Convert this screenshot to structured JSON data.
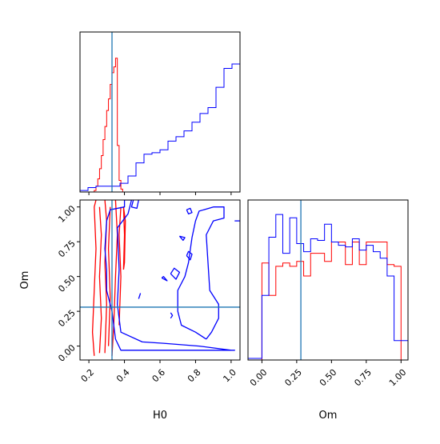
{
  "chart_data": {
    "type": "corner",
    "truth": {
      "H0": 0.33,
      "Om": 0.28
    },
    "colors": {
      "series_a": "#ff0000",
      "series_b": "#0000ff",
      "truth_line": "#1f77b4"
    },
    "panels": [
      {
        "id": "hist-H0",
        "type": "step-histogram",
        "xlim": [
          0.15,
          1.05
        ],
        "xticks": [
          0.2,
          0.4,
          0.6,
          0.8,
          1.0
        ],
        "show_tick_labels": false,
        "truth_x": 0.33,
        "series": [
          {
            "color_key": "series_a",
            "bin_width": 0.01,
            "start": 0.18,
            "values": [
              0,
              0,
              0,
              0,
              0,
              0.01,
              0.04,
              0.09,
              0.16,
              0.25,
              0.36,
              0.45,
              0.56,
              0.64,
              0.74,
              0.82,
              0.86,
              0.92,
              0.32,
              0.08,
              0.02,
              0
            ]
          },
          {
            "color_key": "series_b",
            "bin_width": 0.045,
            "start": 0.15,
            "values": [
              0.01,
              0.03,
              0.04,
              0.04,
              0.04,
              0.06,
              0.11,
              0.2,
              0.26,
              0.27,
              0.29,
              0.35,
              0.38,
              0.42,
              0.48,
              0.54,
              0.58,
              0.72,
              0.85,
              0.88,
              0.97,
              1.0,
              0.82,
              0.32,
              0.03
            ]
          }
        ]
      },
      {
        "id": "contour-H0-Om",
        "type": "contour",
        "xlabel": "H0",
        "ylabel": "Om",
        "xlim": [
          0.15,
          1.05
        ],
        "ylim": [
          -0.1,
          1.05
        ],
        "xticks": [
          0.2,
          0.4,
          0.6,
          0.8,
          1.0
        ],
        "xticklabels": [
          "0.2",
          "0.4",
          "0.6",
          "0.8",
          "1.0"
        ],
        "yticks": [
          0.0,
          0.25,
          0.5,
          0.75,
          1.0
        ],
        "yticklabels": [
          "0.00",
          "0.25",
          "0.50",
          "0.75",
          "1.00"
        ],
        "truth": {
          "x": 0.33,
          "y": 0.28
        },
        "contours": [
          {
            "color_key": "series_a",
            "points": [
              [
                0.23,
                -0.07
              ],
              [
                0.22,
                0.1
              ],
              [
                0.23,
                0.4
              ],
              [
                0.24,
                0.7
              ],
              [
                0.23,
                1.0
              ],
              [
                0.24,
                1.05
              ]
            ]
          },
          {
            "color_key": "series_a",
            "points": [
              [
                0.33,
                -0.07
              ],
              [
                0.34,
                0.15
              ],
              [
                0.35,
                0.5
              ],
              [
                0.36,
                0.8
              ],
              [
                0.35,
                1.05
              ]
            ]
          },
          {
            "color_key": "series_a",
            "points": [
              [
                0.26,
                -0.05
              ],
              [
                0.27,
                0.2
              ],
              [
                0.26,
                0.5
              ],
              [
                0.27,
                0.8
              ],
              [
                0.26,
                1.0
              ]
            ]
          },
          {
            "color_key": "series_a",
            "points": [
              [
                0.29,
                -0.05
              ],
              [
                0.3,
                0.3
              ],
              [
                0.29,
                0.6
              ],
              [
                0.3,
                0.9
              ],
              [
                0.29,
                1.05
              ]
            ]
          },
          {
            "color_key": "series_a",
            "points": [
              [
                0.31,
                0.0
              ],
              [
                0.32,
                0.35
              ],
              [
                0.31,
                0.7
              ],
              [
                0.32,
                1.0
              ]
            ]
          },
          {
            "color_key": "series_a",
            "points": [
              [
                0.37,
                0.15
              ],
              [
                0.38,
                0.5
              ],
              [
                0.37,
                0.8
              ],
              [
                0.38,
                1.0
              ]
            ]
          },
          {
            "color_key": "series_a",
            "points": [
              [
                0.395,
                0.55
              ],
              [
                0.4,
                0.8
              ],
              [
                0.395,
                1.0
              ],
              [
                0.405,
                0.9
              ],
              [
                0.4,
                0.6
              ],
              [
                0.395,
                0.55
              ]
            ]
          },
          {
            "color_key": "series_b",
            "points": [
              [
                0.35,
                0.05
              ],
              [
                0.33,
                0.25
              ],
              [
                0.3,
                0.4
              ],
              [
                0.3,
                0.55
              ],
              [
                0.29,
                0.7
              ],
              [
                0.3,
                0.9
              ],
              [
                0.32,
                0.98
              ],
              [
                0.4,
                1.0
              ],
              [
                0.4,
                1.05
              ],
              [
                0.44,
                1.05
              ],
              [
                0.42,
                0.95
              ],
              [
                0.36,
                0.85
              ],
              [
                0.37,
                0.55
              ],
              [
                0.36,
                0.3
              ],
              [
                0.38,
                0.1
              ],
              [
                0.5,
                0.03
              ],
              [
                0.62,
                0.02
              ],
              [
                0.82,
                0.0
              ],
              [
                1.0,
                -0.03
              ],
              [
                1.02,
                -0.03
              ],
              [
                0.85,
                -0.03
              ],
              [
                0.6,
                -0.03
              ],
              [
                0.38,
                -0.03
              ],
              [
                0.35,
                0.05
              ]
            ]
          },
          {
            "color_key": "series_b",
            "points": [
              [
                0.45,
                1.05
              ],
              [
                0.44,
                1.0
              ],
              [
                0.47,
                0.99
              ],
              [
                0.48,
                1.05
              ]
            ]
          },
          {
            "color_key": "series_b",
            "points": [
              [
                0.86,
                0.05
              ],
              [
                0.8,
                0.1
              ],
              [
                0.72,
                0.15
              ],
              [
                0.7,
                0.25
              ],
              [
                0.7,
                0.4
              ],
              [
                0.74,
                0.5
              ],
              [
                0.76,
                0.6
              ],
              [
                0.78,
                0.78
              ],
              [
                0.8,
                0.9
              ],
              [
                0.82,
                0.97
              ],
              [
                0.9,
                1.0
              ],
              [
                0.96,
                1.0
              ],
              [
                0.96,
                0.92
              ],
              [
                0.9,
                0.9
              ],
              [
                0.86,
                0.8
              ],
              [
                0.87,
                0.6
              ],
              [
                0.88,
                0.4
              ],
              [
                0.93,
                0.3
              ],
              [
                0.93,
                0.2
              ],
              [
                0.89,
                0.1
              ],
              [
                0.86,
                0.05
              ]
            ]
          },
          {
            "color_key": "series_b",
            "points": [
              [
                0.75,
                0.98
              ],
              [
                0.76,
                0.95
              ],
              [
                0.78,
                0.96
              ],
              [
                0.77,
                0.99
              ],
              [
                0.75,
                0.98
              ]
            ]
          },
          {
            "color_key": "series_b",
            "points": [
              [
                0.71,
                0.79
              ],
              [
                0.74,
                0.78
              ],
              [
                0.73,
                0.76
              ],
              [
                0.71,
                0.79
              ]
            ]
          },
          {
            "color_key": "series_b",
            "points": [
              [
                0.75,
                0.65
              ],
              [
                0.77,
                0.62
              ],
              [
                0.78,
                0.66
              ],
              [
                0.76,
                0.68
              ],
              [
                0.75,
                0.65
              ]
            ]
          },
          {
            "color_key": "series_b",
            "points": [
              [
                0.61,
                0.49
              ],
              [
                0.64,
                0.47
              ],
              [
                0.62,
                0.5
              ],
              [
                0.61,
                0.49
              ]
            ]
          },
          {
            "color_key": "series_b",
            "points": [
              [
                0.66,
                0.52
              ],
              [
                0.69,
                0.48
              ],
              [
                0.71,
                0.53
              ],
              [
                0.68,
                0.56
              ],
              [
                0.66,
                0.52
              ]
            ]
          },
          {
            "color_key": "series_b",
            "points": [
              [
                0.48,
                0.34
              ],
              [
                0.49,
                0.38
              ]
            ]
          },
          {
            "color_key": "series_b",
            "points": [
              [
                0.66,
                0.2
              ],
              [
                0.67,
                0.22
              ],
              [
                0.66,
                0.24
              ]
            ]
          },
          {
            "color_key": "series_b",
            "points": [
              [
                1.02,
                0.9
              ],
              [
                1.05,
                0.9
              ]
            ]
          }
        ]
      },
      {
        "id": "hist-Om",
        "type": "step-histogram",
        "xlabel": "Om",
        "xlim": [
          -0.1,
          1.05
        ],
        "xticks": [
          0.0,
          0.25,
          0.5,
          0.75,
          1.0
        ],
        "xticklabels": [
          "0.00",
          "0.25",
          "0.50",
          "0.75",
          "1.00"
        ],
        "truth_x": 0.28,
        "series": [
          {
            "color_key": "series_a",
            "bin_width": 0.05,
            "start": -0.1,
            "values": [
              0,
              0,
              0.6,
              0.4,
              0.58,
              0.6,
              0.58,
              0.61,
              0.52,
              0.66,
              0.66,
              0.61,
              0.73,
              0.73,
              0.59,
              0.73,
              0.59,
              0.73,
              0.73,
              0.73,
              0.59,
              0.58,
              0
            ]
          },
          {
            "color_key": "series_b",
            "bin_width": 0.05,
            "start": -0.1,
            "values": [
              0.01,
              0.01,
              0.4,
              0.76,
              0.9,
              0.66,
              0.88,
              0.72,
              0.67,
              0.75,
              0.74,
              0.84,
              0.73,
              0.71,
              0.7,
              0.75,
              0.68,
              0.71,
              0.67,
              0.63,
              0.52,
              0.12,
              0.12
            ]
          }
        ]
      }
    ]
  }
}
